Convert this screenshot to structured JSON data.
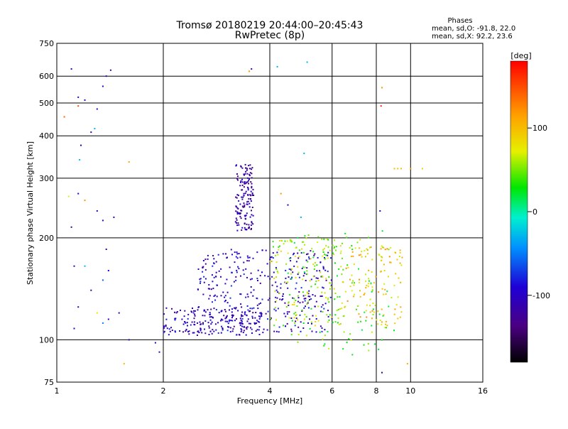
{
  "chart_data": {
    "type": "scatter",
    "title": "Tromsø 20180219 20:44:00–20:45:43",
    "subtitle": "RwPretec (8p)",
    "phases": {
      "header": "Phases",
      "line_o": "mean, sd,O: -91.8, 22.0",
      "line_x": "mean, sd,X:  92.2, 23.6"
    },
    "xlabel": "Frequency [MHz]",
    "ylabel": "Stationary phase Virtual Height [km]",
    "x_scale": "log",
    "y_scale": "log",
    "xlim": [
      1,
      16
    ],
    "ylim": [
      75,
      750
    ],
    "x_ticks": [
      {
        "value": 1,
        "label": "1"
      },
      {
        "value": 2,
        "label": "2"
      },
      {
        "value": 4,
        "label": "4"
      },
      {
        "value": 6,
        "label": "6"
      },
      {
        "value": 8,
        "label": "8"
      },
      {
        "value": 10,
        "label": "10"
      },
      {
        "value": 16,
        "label": "16"
      }
    ],
    "y_ticks": [
      {
        "value": 75,
        "label": "75"
      },
      {
        "value": 100,
        "label": "100"
      },
      {
        "value": 200,
        "label": "200"
      },
      {
        "value": 300,
        "label": "300"
      },
      {
        "value": 400,
        "label": "400"
      },
      {
        "value": 500,
        "label": "500"
      },
      {
        "value": 600,
        "label": "600"
      },
      {
        "value": 750,
        "label": "750"
      }
    ],
    "grid": true,
    "colorbar": {
      "label": "[deg]",
      "range": [
        -180,
        180
      ],
      "ticks": [
        {
          "value": 100,
          "label": "100"
        },
        {
          "value": 0,
          "label": "0"
        },
        {
          "value": -100,
          "label": "-100"
        }
      ]
    },
    "clusters": [
      {
        "name": "low_layer_traces",
        "x_range": [
          2.0,
          3.8
        ],
        "y_range": [
          103,
          125
        ],
        "phase": -105,
        "count": 190
      },
      {
        "name": "main_spread",
        "x_range": [
          2.5,
          6.0
        ],
        "y_range": [
          105,
          185
        ],
        "phase": -100,
        "count": 360
      },
      {
        "name": "steep_rise",
        "x_range": [
          3.2,
          3.6
        ],
        "y_range": [
          210,
          330
        ],
        "phase": -115,
        "count": 150
      },
      {
        "name": "mid_mixed",
        "x_range": [
          4.0,
          6.5
        ],
        "y_range": [
          110,
          200
        ],
        "phase": 60,
        "count": 150
      },
      {
        "name": "x_mode_traces",
        "x_range": [
          6.5,
          9.5
        ],
        "y_range": [
          110,
          190
        ],
        "phase": 95,
        "count": 120
      },
      {
        "name": "high_scatter_mixed",
        "x_range": [
          4.5,
          9.0
        ],
        "y_range": [
          90,
          210
        ],
        "phase": 40,
        "count": 120
      }
    ],
    "points": [
      {
        "x": 1.1,
        "y": 630,
        "phase": -110
      },
      {
        "x": 1.15,
        "y": 520,
        "phase": -105
      },
      {
        "x": 1.2,
        "y": 510,
        "phase": -100
      },
      {
        "x": 1.3,
        "y": 480,
        "phase": -95
      },
      {
        "x": 1.38,
        "y": 600,
        "phase": -120
      },
      {
        "x": 1.42,
        "y": 625,
        "phase": -115
      },
      {
        "x": 1.35,
        "y": 560,
        "phase": -90
      },
      {
        "x": 1.15,
        "y": 490,
        "phase": 150
      },
      {
        "x": 1.05,
        "y": 455,
        "phase": 140
      },
      {
        "x": 1.25,
        "y": 410,
        "phase": -105
      },
      {
        "x": 1.28,
        "y": 420,
        "phase": -30
      },
      {
        "x": 1.17,
        "y": 375,
        "phase": -110
      },
      {
        "x": 1.16,
        "y": 340,
        "phase": -30
      },
      {
        "x": 1.6,
        "y": 335,
        "phase": 110
      },
      {
        "x": 1.15,
        "y": 270,
        "phase": -105
      },
      {
        "x": 1.08,
        "y": 265,
        "phase": 70
      },
      {
        "x": 1.2,
        "y": 258,
        "phase": 120
      },
      {
        "x": 1.3,
        "y": 240,
        "phase": -110
      },
      {
        "x": 1.35,
        "y": 225,
        "phase": -100
      },
      {
        "x": 1.45,
        "y": 230,
        "phase": -110
      },
      {
        "x": 1.1,
        "y": 215,
        "phase": -110
      },
      {
        "x": 1.38,
        "y": 185,
        "phase": -120
      },
      {
        "x": 1.12,
        "y": 165,
        "phase": -110
      },
      {
        "x": 1.2,
        "y": 165,
        "phase": -30
      },
      {
        "x": 1.4,
        "y": 160,
        "phase": -90
      },
      {
        "x": 1.35,
        "y": 150,
        "phase": -60
      },
      {
        "x": 1.25,
        "y": 140,
        "phase": -110
      },
      {
        "x": 1.15,
        "y": 125,
        "phase": -110
      },
      {
        "x": 1.3,
        "y": 120,
        "phase": 80
      },
      {
        "x": 1.5,
        "y": 120,
        "phase": -100
      },
      {
        "x": 1.35,
        "y": 112,
        "phase": -50
      },
      {
        "x": 1.4,
        "y": 115,
        "phase": -110
      },
      {
        "x": 1.6,
        "y": 100,
        "phase": -110
      },
      {
        "x": 1.12,
        "y": 108,
        "phase": -100
      },
      {
        "x": 1.55,
        "y": 85,
        "phase": 100
      },
      {
        "x": 1.9,
        "y": 98,
        "phase": -110
      },
      {
        "x": 1.95,
        "y": 92,
        "phase": -95
      },
      {
        "x": 3.5,
        "y": 620,
        "phase": 120
      },
      {
        "x": 3.55,
        "y": 630,
        "phase": -110
      },
      {
        "x": 4.2,
        "y": 640,
        "phase": -30
      },
      {
        "x": 5.1,
        "y": 660,
        "phase": -30
      },
      {
        "x": 5.0,
        "y": 355,
        "phase": -30
      },
      {
        "x": 8.3,
        "y": 555,
        "phase": 120
      },
      {
        "x": 8.25,
        "y": 490,
        "phase": 170
      },
      {
        "x": 9.0,
        "y": 320,
        "phase": 100
      },
      {
        "x": 9.2,
        "y": 320,
        "phase": 95
      },
      {
        "x": 9.4,
        "y": 320,
        "phase": 100
      },
      {
        "x": 10.0,
        "y": 320,
        "phase": 120
      },
      {
        "x": 10.8,
        "y": 320,
        "phase": 90
      },
      {
        "x": 8.2,
        "y": 240,
        "phase": -110
      },
      {
        "x": 8.3,
        "y": 80,
        "phase": -110
      },
      {
        "x": 9.8,
        "y": 85,
        "phase": 110
      },
      {
        "x": 4.9,
        "y": 230,
        "phase": -30
      },
      {
        "x": 4.3,
        "y": 270,
        "phase": 120
      },
      {
        "x": 4.5,
        "y": 250,
        "phase": -100
      }
    ]
  }
}
